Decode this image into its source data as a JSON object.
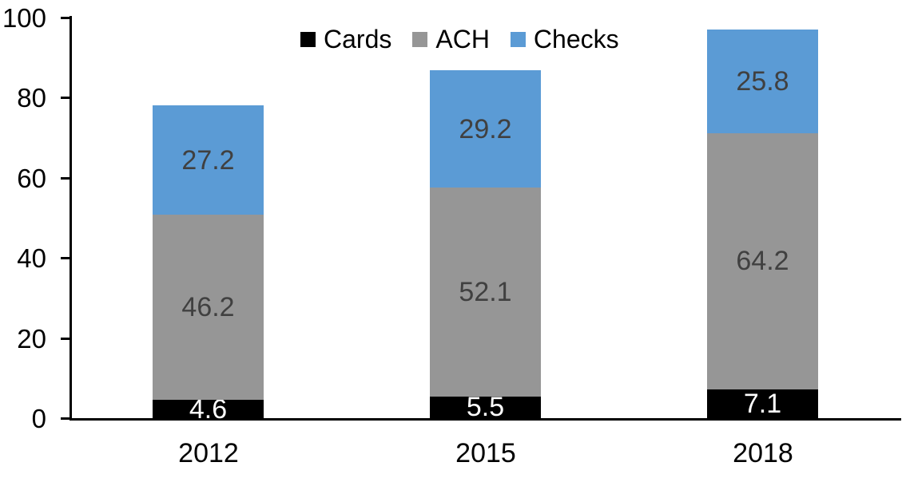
{
  "chart_data": {
    "type": "bar",
    "stacked": true,
    "title": "",
    "xlabel": "",
    "ylabel": "",
    "categories": [
      "2012",
      "2015",
      "2018"
    ],
    "series": [
      {
        "name": "Cards",
        "color": "#000000",
        "label_color": "#ffffff",
        "values": [
          4.6,
          5.5,
          7.1
        ]
      },
      {
        "name": "ACH",
        "color": "#969696",
        "label_color": "#404040",
        "values": [
          46.2,
          52.1,
          64.2
        ]
      },
      {
        "name": "Checks",
        "color": "#5B9BD5",
        "label_color": "#404040",
        "values": [
          27.2,
          29.2,
          25.8
        ]
      }
    ],
    "stack_totals": [
      78.0,
      86.8,
      97.1
    ],
    "ylim": [
      0,
      100
    ],
    "yticks": [
      0,
      20,
      40,
      60,
      80,
      100
    ],
    "grid": false,
    "legend_position": "top-center",
    "legend_entries": [
      "Cards",
      "ACH",
      "Checks"
    ],
    "axis_color": "#000000",
    "background_color": "#ffffff"
  }
}
